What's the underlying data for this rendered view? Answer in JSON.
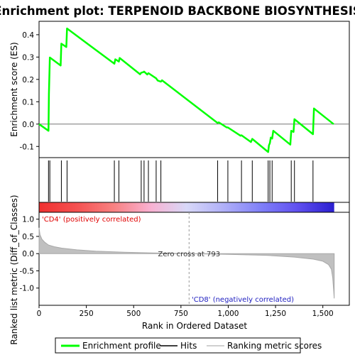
{
  "chart_data": {
    "type": "line",
    "title": "Enrichment plot: TERPENOID BACKBONE BIOSYNTHESIS",
    "top_panel": {
      "ylabel": "Enrichment score (ES)",
      "ylim": [
        -0.15,
        0.46
      ],
      "yticks": [
        "-0.1",
        "0.0",
        "0.1",
        "0.2",
        "0.3",
        "0.4"
      ],
      "ytick_values": [
        -0.1,
        0.0,
        0.1,
        0.2,
        0.3,
        0.4
      ],
      "series": [
        {
          "name": "Enrichment profile",
          "color": "#00ff00",
          "x": [
            0,
            50,
            52,
            57,
            114,
            118,
            144,
            148,
            398,
            403,
            422,
            426,
            534,
            540,
            553,
            555,
            572,
            578,
            619,
            627,
            644,
            650,
            944,
            950,
            992,
            998,
            1065,
            1070,
            1120,
            1127,
            1211,
            1215,
            1220,
            1225,
            1232,
            1238,
            1328,
            1333,
            1345,
            1350,
            1448,
            1453,
            1557
          ],
          "y": [
            0.0,
            -0.03,
            0.135,
            0.298,
            0.262,
            0.36,
            0.345,
            0.428,
            0.27,
            0.29,
            0.28,
            0.296,
            0.223,
            0.23,
            0.233,
            0.235,
            0.222,
            0.228,
            0.205,
            0.195,
            0.19,
            0.196,
            0.005,
            0.008,
            -0.015,
            -0.015,
            -0.052,
            -0.05,
            -0.08,
            -0.066,
            -0.125,
            -0.095,
            -0.085,
            -0.06,
            -0.065,
            -0.03,
            -0.092,
            -0.03,
            -0.035,
            0.022,
            -0.045,
            0.07,
            0.0
          ]
        }
      ]
    },
    "hits": {
      "name": "Hits",
      "positions": [
        50,
        57,
        118,
        148,
        398,
        422,
        540,
        555,
        578,
        619,
        644,
        944,
        998,
        1070,
        1127,
        1211,
        1220,
        1232,
        1333,
        1350,
        1448
      ]
    },
    "ranking_bar": {
      "colors": [
        "#f03030",
        "#f55050",
        "#f88080",
        "#f9b0d0",
        "#d8d8f8",
        "#b0b0f8",
        "#8080f8",
        "#6050f0",
        "#2a1fd0"
      ]
    },
    "bottom_panel": {
      "ylabel": "Ranked list metric (Diff_of_Classes)",
      "ylim": [
        -1.5,
        1.2
      ],
      "yticks": [
        "-1.0",
        "-0.5",
        "0.0",
        "0.5",
        "1.0"
      ],
      "ytick_values": [
        -1.0,
        -0.5,
        0.0,
        0.5,
        1.0
      ],
      "series_name": "Ranking metric scores",
      "series_color": "#c0c0c0",
      "metric_x": [
        0,
        5,
        15,
        30,
        50,
        80,
        120,
        200,
        300,
        450,
        600,
        793,
        1000,
        1200,
        1350,
        1450,
        1500,
        1530,
        1545,
        1552,
        1557,
        1560
      ],
      "metric_y": [
        0.75,
        0.55,
        0.42,
        0.33,
        0.25,
        0.2,
        0.16,
        0.11,
        0.07,
        0.04,
        0.02,
        0.0,
        -0.02,
        -0.05,
        -0.1,
        -0.16,
        -0.22,
        -0.32,
        -0.45,
        -0.7,
        -1.05,
        -1.3
      ],
      "annotations": {
        "positive": "'CD4' (positively correlated)",
        "zero_cross": "Zero cross at 793",
        "negative": "'CD8' (negatively correlated)"
      },
      "zero_cross": 793
    },
    "xaxis": {
      "label": "Rank in Ordered Dataset",
      "xlim": [
        0,
        1640
      ],
      "ticks": [
        "0",
        "250",
        "500",
        "750",
        "1,000",
        "1,250",
        "1,500"
      ],
      "tick_values": [
        0,
        250,
        500,
        750,
        1000,
        1250,
        1500
      ]
    },
    "legend": {
      "position": "bottom",
      "items": [
        "Enrichment profile",
        "Hits",
        "Ranking metric scores"
      ]
    }
  }
}
